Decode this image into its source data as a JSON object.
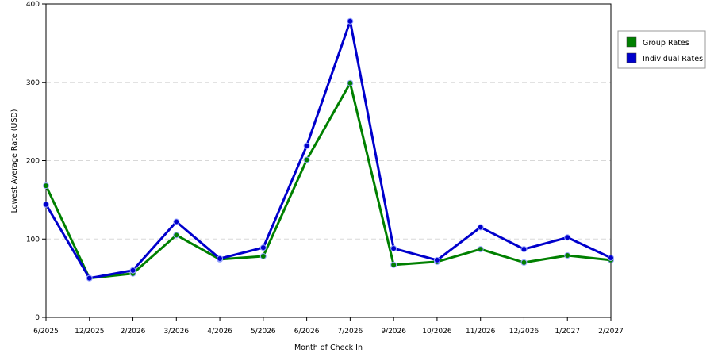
{
  "chart_data": {
    "type": "line",
    "title": "",
    "xlabel": "Month of Check In",
    "ylabel": "Lowest Average Rate (USD)",
    "categories": [
      "6/2025",
      "12/2025",
      "2/2026",
      "3/2026",
      "4/2026",
      "5/2026",
      "6/2026",
      "7/2026",
      "9/2026",
      "10/2026",
      "11/2026",
      "12/2026",
      "1/2027",
      "2/2027"
    ],
    "ylim": [
      0,
      400
    ],
    "yticks": [
      0,
      100,
      200,
      300,
      400
    ],
    "grid": true,
    "legend_position": "right",
    "series": [
      {
        "name": "Group Rates",
        "color": "#008000",
        "values": [
          168,
          50,
          56,
          105,
          74,
          78,
          201,
          299,
          67,
          71,
          87,
          70,
          79,
          73
        ]
      },
      {
        "name": "Individual Rates",
        "color": "#0000cc",
        "values": [
          144,
          50,
          60,
          122,
          75,
          89,
          219,
          378,
          88,
          73,
          115,
          87,
          102,
          76
        ]
      }
    ]
  }
}
